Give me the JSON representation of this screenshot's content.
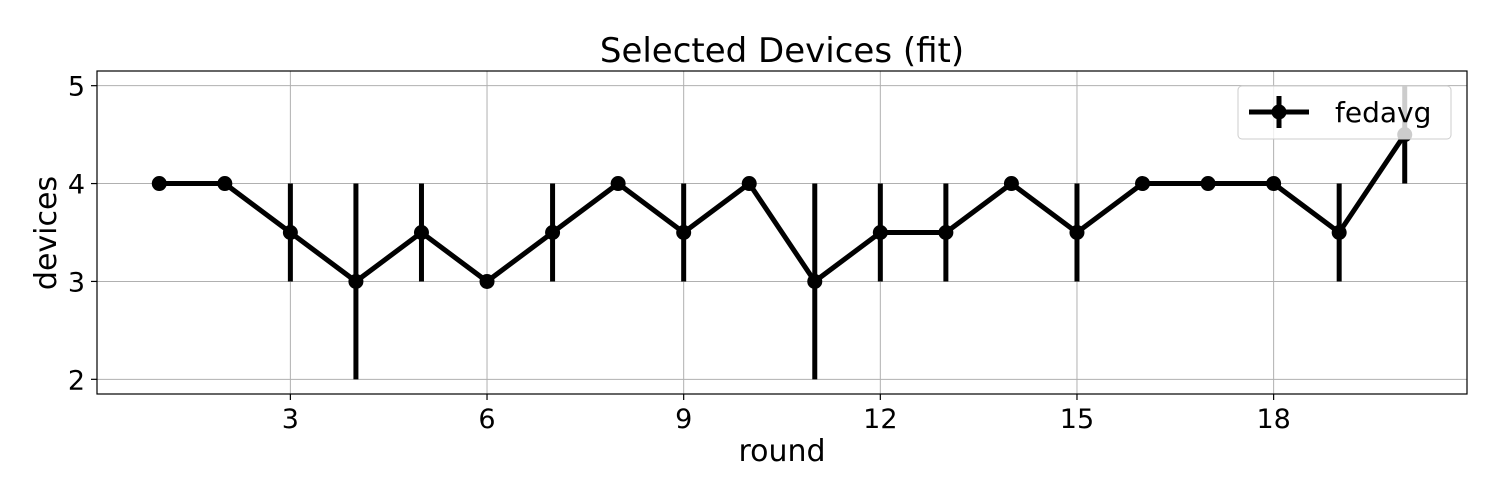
{
  "chart_data": {
    "type": "line",
    "title": "Selected Devices (fit)",
    "xlabel": "round",
    "ylabel": "devices",
    "xlim": [
      0.05,
      20.95
    ],
    "ylim": [
      1.85,
      5.15
    ],
    "xticks": [
      3,
      6,
      9,
      12,
      15,
      18
    ],
    "yticks": [
      2,
      3,
      4,
      5
    ],
    "grid": true,
    "legend": {
      "position": "top-right",
      "entries": [
        "fedavg"
      ]
    },
    "series": [
      {
        "name": "fedavg",
        "color": "#000000",
        "x": [
          1,
          2,
          3,
          4,
          5,
          6,
          7,
          8,
          9,
          10,
          11,
          12,
          13,
          14,
          15,
          16,
          17,
          18,
          19,
          20
        ],
        "y": [
          4,
          4,
          3.5,
          3,
          3.5,
          3,
          3.5,
          4,
          3.5,
          4,
          3,
          3.5,
          3.5,
          4,
          3.5,
          4,
          4,
          4,
          3.5,
          4.5
        ],
        "err": [
          0,
          0,
          0.5,
          1,
          0.5,
          0,
          0.5,
          0,
          0.5,
          0,
          1,
          0.5,
          0.5,
          0,
          0.5,
          0,
          0,
          0,
          0.5,
          0.5
        ]
      }
    ]
  }
}
